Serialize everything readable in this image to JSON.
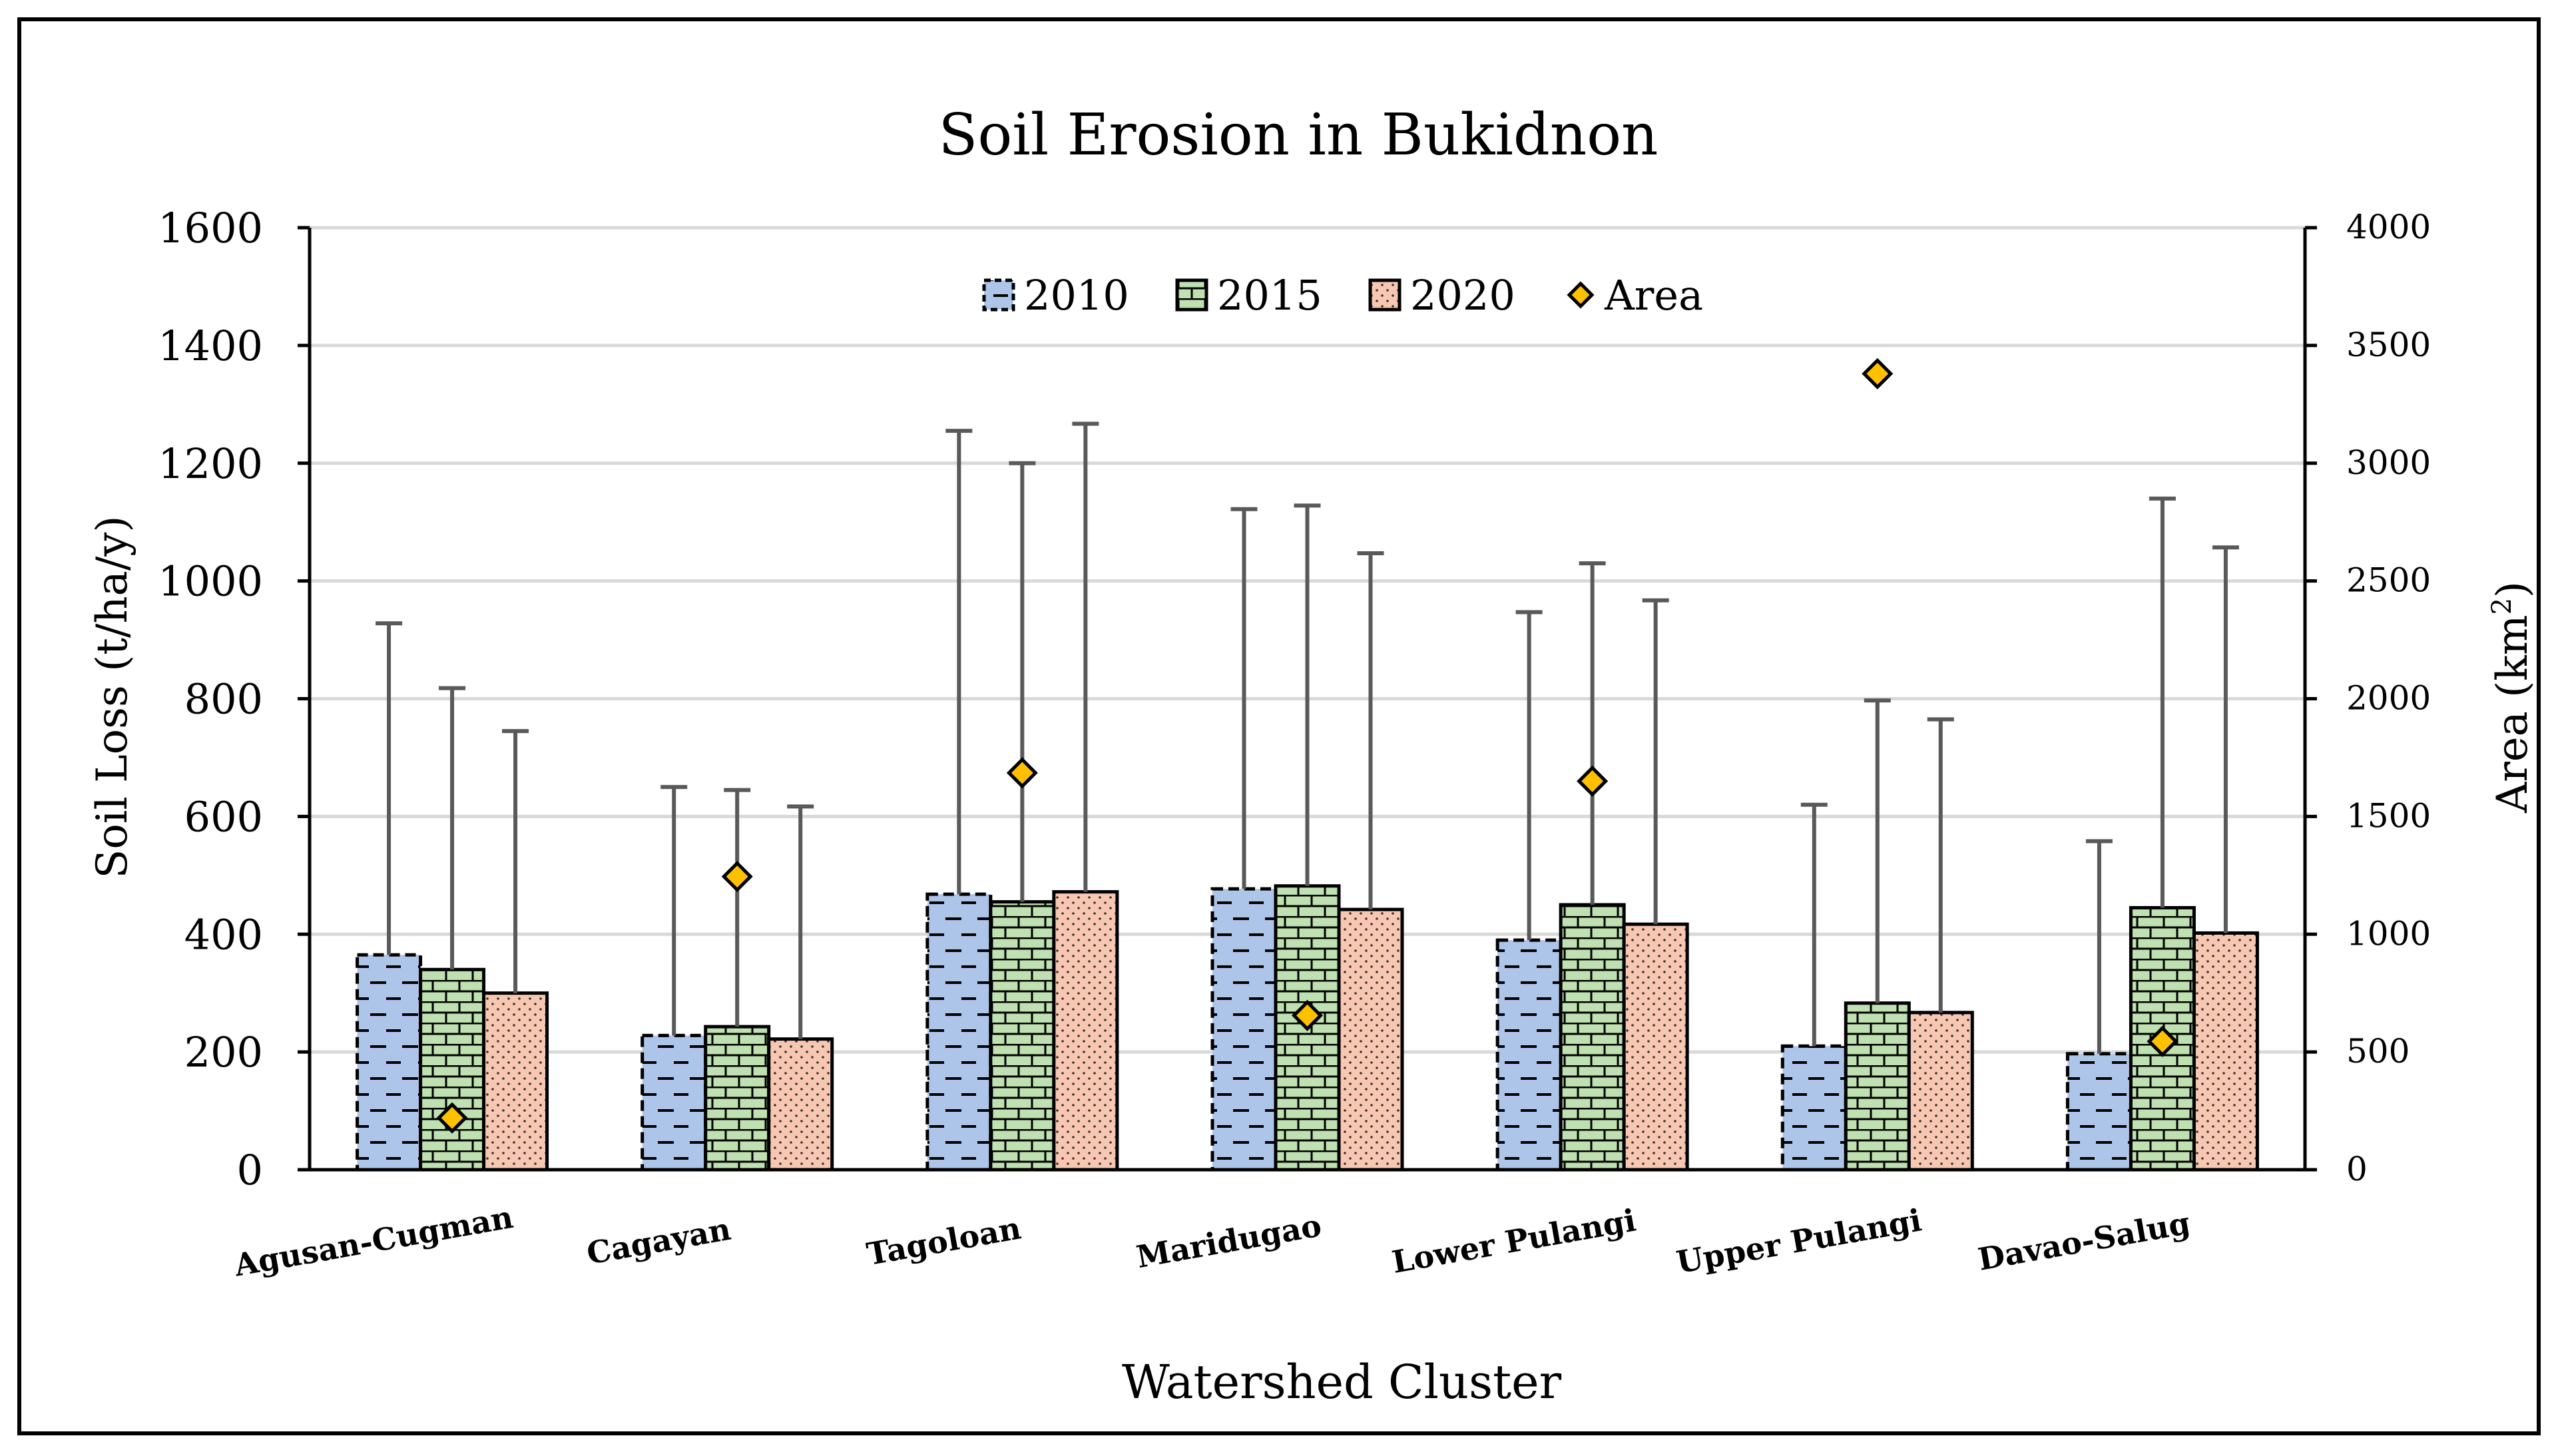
{
  "chart_data": {
    "type": "bar",
    "title": "Soil Erosion in Bukidnon",
    "xlabel": "Watershed Cluster",
    "ylabel": "Soil Loss (t/ha/y)",
    "y2label_main": "Area (km",
    "y2label_sup": "2",
    "y2label_end": ")",
    "ylim": [
      0,
      1600
    ],
    "y2lim": [
      0,
      4000
    ],
    "yticks": [
      "0",
      "200",
      "400",
      "600",
      "800",
      "1000",
      "1200",
      "1400",
      "1600"
    ],
    "y2ticks": [
      "0",
      "500",
      "1000",
      "1500",
      "2000",
      "2500",
      "3000",
      "3500",
      "4000"
    ],
    "grid": true,
    "legend_position": "top-center",
    "categories": [
      "Agusan-Cugman",
      "Cagayan",
      "Tagoloan",
      "Maridugao",
      "Lower Pulangi",
      "Upper Pulangi",
      "Davao-Salug"
    ],
    "series": [
      {
        "name": "2010",
        "pattern": "dashes",
        "color": "#aec5ea",
        "values": [
          365,
          228,
          468,
          477,
          390,
          210,
          197
        ],
        "error_upper": [
          928,
          650,
          1255,
          1122,
          947,
          620,
          558
        ]
      },
      {
        "name": "2015",
        "pattern": "bricks",
        "color": "#bfe0b0",
        "values": [
          340,
          243,
          455,
          482,
          450,
          283,
          445
        ],
        "error_upper": [
          818,
          645,
          1200,
          1128,
          1030,
          797,
          1140
        ]
      },
      {
        "name": "2020",
        "pattern": "dots",
        "color": "#f8c7b2",
        "values": [
          300,
          222,
          472,
          442,
          417,
          267,
          402
        ],
        "error_upper": [
          745,
          617,
          1267,
          1047,
          967,
          765,
          1057
        ]
      }
    ],
    "area_series": {
      "name": "Area",
      "color": "#ffc000",
      "axis": "secondary",
      "values": [
        220,
        1245,
        1685,
        655,
        1650,
        3380,
        545
      ]
    }
  },
  "colors": {
    "axis": "#000000",
    "grid": "#d9d9d9",
    "error_bar": "#595959"
  }
}
